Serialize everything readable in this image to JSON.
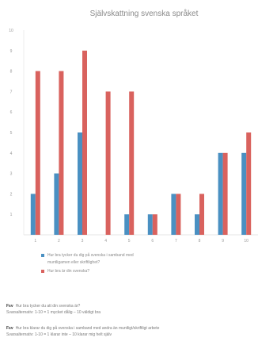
{
  "chart_data": {
    "type": "bar",
    "title": "Självskattning svenska språket",
    "categories": [
      "1",
      "2",
      "3",
      "4",
      "5",
      "6",
      "7",
      "8",
      "9",
      "10"
    ],
    "series": [
      {
        "name": "Hur bra tycker du dig på svenska i samband med muntligamen eller skriftlighet?",
        "color": "#4a90c2",
        "values": [
          2,
          3,
          5,
          0,
          1,
          1,
          2,
          1,
          4,
          4
        ]
      },
      {
        "name": "Hur bra är din svenska?",
        "color": "#d9625e",
        "values": [
          8,
          8,
          9,
          7,
          7,
          1,
          2,
          2,
          4,
          5
        ]
      }
    ],
    "yticks": [
      "1",
      "2",
      "3",
      "4",
      "5",
      "6",
      "7",
      "8",
      "9",
      "10"
    ],
    "ylim": [
      0,
      10
    ],
    "grid": false,
    "legend_position": "bottom"
  },
  "notes": [
    {
      "label": "Fsv",
      "line1": "Hur bra tycker du att din svenska är?",
      "line2": "Svarsalternativ: 1-10 = 1 mycket dålig – 10 väldigt bra"
    },
    {
      "label": "Fsv",
      "line1": "Hur bra klarar du dig på svenska i samband med andra än muntligt/skriftligt arbete",
      "line2": "Svarsalternativ: 1-10 = 1 klarar inte – 10 klarar mig helt själv"
    }
  ]
}
